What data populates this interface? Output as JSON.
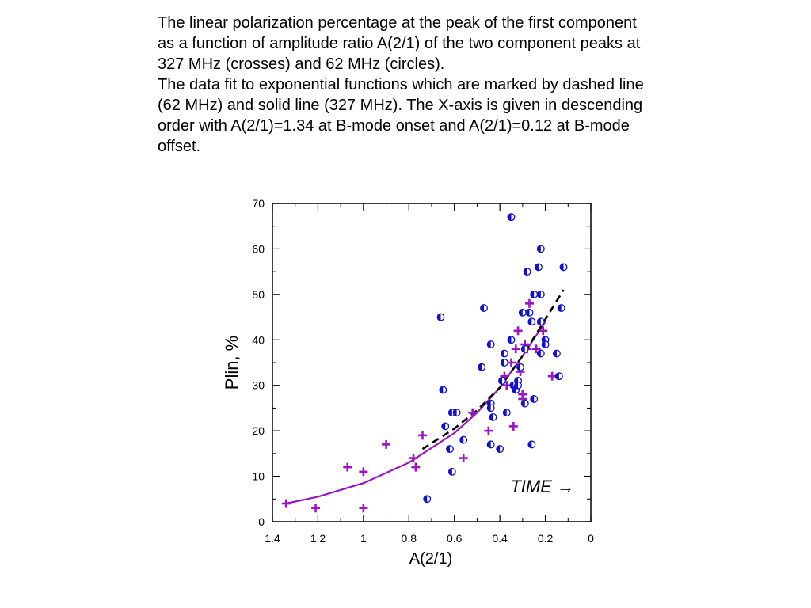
{
  "caption": {
    "paragraph1": "The linear polarization percentage at the peak of the first component as a function of amplitude ratio A(2/1) of the two component peaks at 327 MHz (crosses) and 62 MHz (circles).",
    "paragraph2": "The data fit to exponential functions which are marked by dashed line (62 MHz) and solid line (327 MHz). The X-axis is given in descending order with A(2/1)=1.34 at B-mode onset and A(2/1)=0.12 at B-mode offset."
  },
  "chart_data": {
    "type": "scatter",
    "xlabel": "A(2/1)",
    "ylabel": "Plin, %",
    "xlim": [
      1.4,
      0
    ],
    "ylim": [
      0,
      70
    ],
    "x_reversed": true,
    "x_ticks": [
      "1.4",
      "1.2",
      "1",
      "0.8",
      "0.6",
      "0.4",
      "0.2",
      "0"
    ],
    "y_ticks": [
      "0",
      "10",
      "20",
      "30",
      "40",
      "50",
      "60",
      "70"
    ],
    "annotation": "TIME →",
    "colors": {
      "crosses": "#9b16c0",
      "circles": "#1010d0",
      "circle_fill": "#1010d0",
      "solid_fit": "#9b16c0",
      "dashed_fit": "#000000"
    },
    "series": [
      {
        "marker": "cross",
        "points": [
          [
            1.34,
            4
          ],
          [
            1.21,
            3
          ],
          [
            1.07,
            12
          ],
          [
            1.0,
            11
          ],
          [
            1.0,
            3
          ],
          [
            0.9,
            17
          ],
          [
            0.78,
            14
          ],
          [
            0.77,
            12
          ],
          [
            0.74,
            19
          ],
          [
            0.56,
            14
          ],
          [
            0.52,
            24
          ],
          [
            0.45,
            20
          ],
          [
            0.38,
            32
          ],
          [
            0.37,
            30
          ],
          [
            0.35,
            35
          ],
          [
            0.34,
            21
          ],
          [
            0.33,
            38
          ],
          [
            0.32,
            42
          ],
          [
            0.31,
            33
          ],
          [
            0.3,
            28
          ],
          [
            0.3,
            27
          ],
          [
            0.29,
            39
          ],
          [
            0.28,
            38
          ],
          [
            0.27,
            48
          ],
          [
            0.24,
            38
          ],
          [
            0.21,
            42
          ],
          [
            0.17,
            32
          ]
        ]
      },
      {
        "marker": "circle",
        "points": [
          [
            0.72,
            5
          ],
          [
            0.66,
            45
          ],
          [
            0.65,
            29
          ],
          [
            0.64,
            21
          ],
          [
            0.62,
            16
          ],
          [
            0.61,
            11
          ],
          [
            0.61,
            24
          ],
          [
            0.59,
            24
          ],
          [
            0.56,
            18
          ],
          [
            0.48,
            34
          ],
          [
            0.47,
            47
          ],
          [
            0.44,
            26
          ],
          [
            0.44,
            25
          ],
          [
            0.43,
            23
          ],
          [
            0.44,
            39
          ],
          [
            0.44,
            17
          ],
          [
            0.4,
            16
          ],
          [
            0.39,
            31
          ],
          [
            0.38,
            37
          ],
          [
            0.38,
            35
          ],
          [
            0.37,
            24
          ],
          [
            0.35,
            40
          ],
          [
            0.35,
            67
          ],
          [
            0.34,
            30
          ],
          [
            0.33,
            29
          ],
          [
            0.32,
            31
          ],
          [
            0.32,
            30
          ],
          [
            0.31,
            34
          ],
          [
            0.3,
            46
          ],
          [
            0.29,
            26
          ],
          [
            0.29,
            38
          ],
          [
            0.28,
            55
          ],
          [
            0.27,
            46
          ],
          [
            0.26,
            44
          ],
          [
            0.25,
            50
          ],
          [
            0.25,
            27
          ],
          [
            0.26,
            17
          ],
          [
            0.23,
            56
          ],
          [
            0.22,
            60
          ],
          [
            0.22,
            50
          ],
          [
            0.22,
            44
          ],
          [
            0.22,
            37
          ],
          [
            0.2,
            40
          ],
          [
            0.2,
            39
          ],
          [
            0.15,
            37
          ],
          [
            0.14,
            32
          ],
          [
            0.13,
            47
          ],
          [
            0.12,
            56
          ]
        ]
      }
    ],
    "fits": [
      {
        "style": "solid",
        "points": [
          [
            1.34,
            4
          ],
          [
            1.2,
            5.5
          ],
          [
            1.0,
            8.5
          ],
          [
            0.8,
            13
          ],
          [
            0.6,
            19.5
          ],
          [
            0.5,
            24
          ],
          [
            0.4,
            29.5
          ],
          [
            0.3,
            36.5
          ],
          [
            0.2,
            44
          ]
        ]
      },
      {
        "style": "dashed",
        "points": [
          [
            0.74,
            16
          ],
          [
            0.6,
            20.5
          ],
          [
            0.5,
            24.5
          ],
          [
            0.4,
            29.5
          ],
          [
            0.3,
            36.5
          ],
          [
            0.2,
            44.5
          ],
          [
            0.12,
            51
          ]
        ]
      }
    ]
  }
}
